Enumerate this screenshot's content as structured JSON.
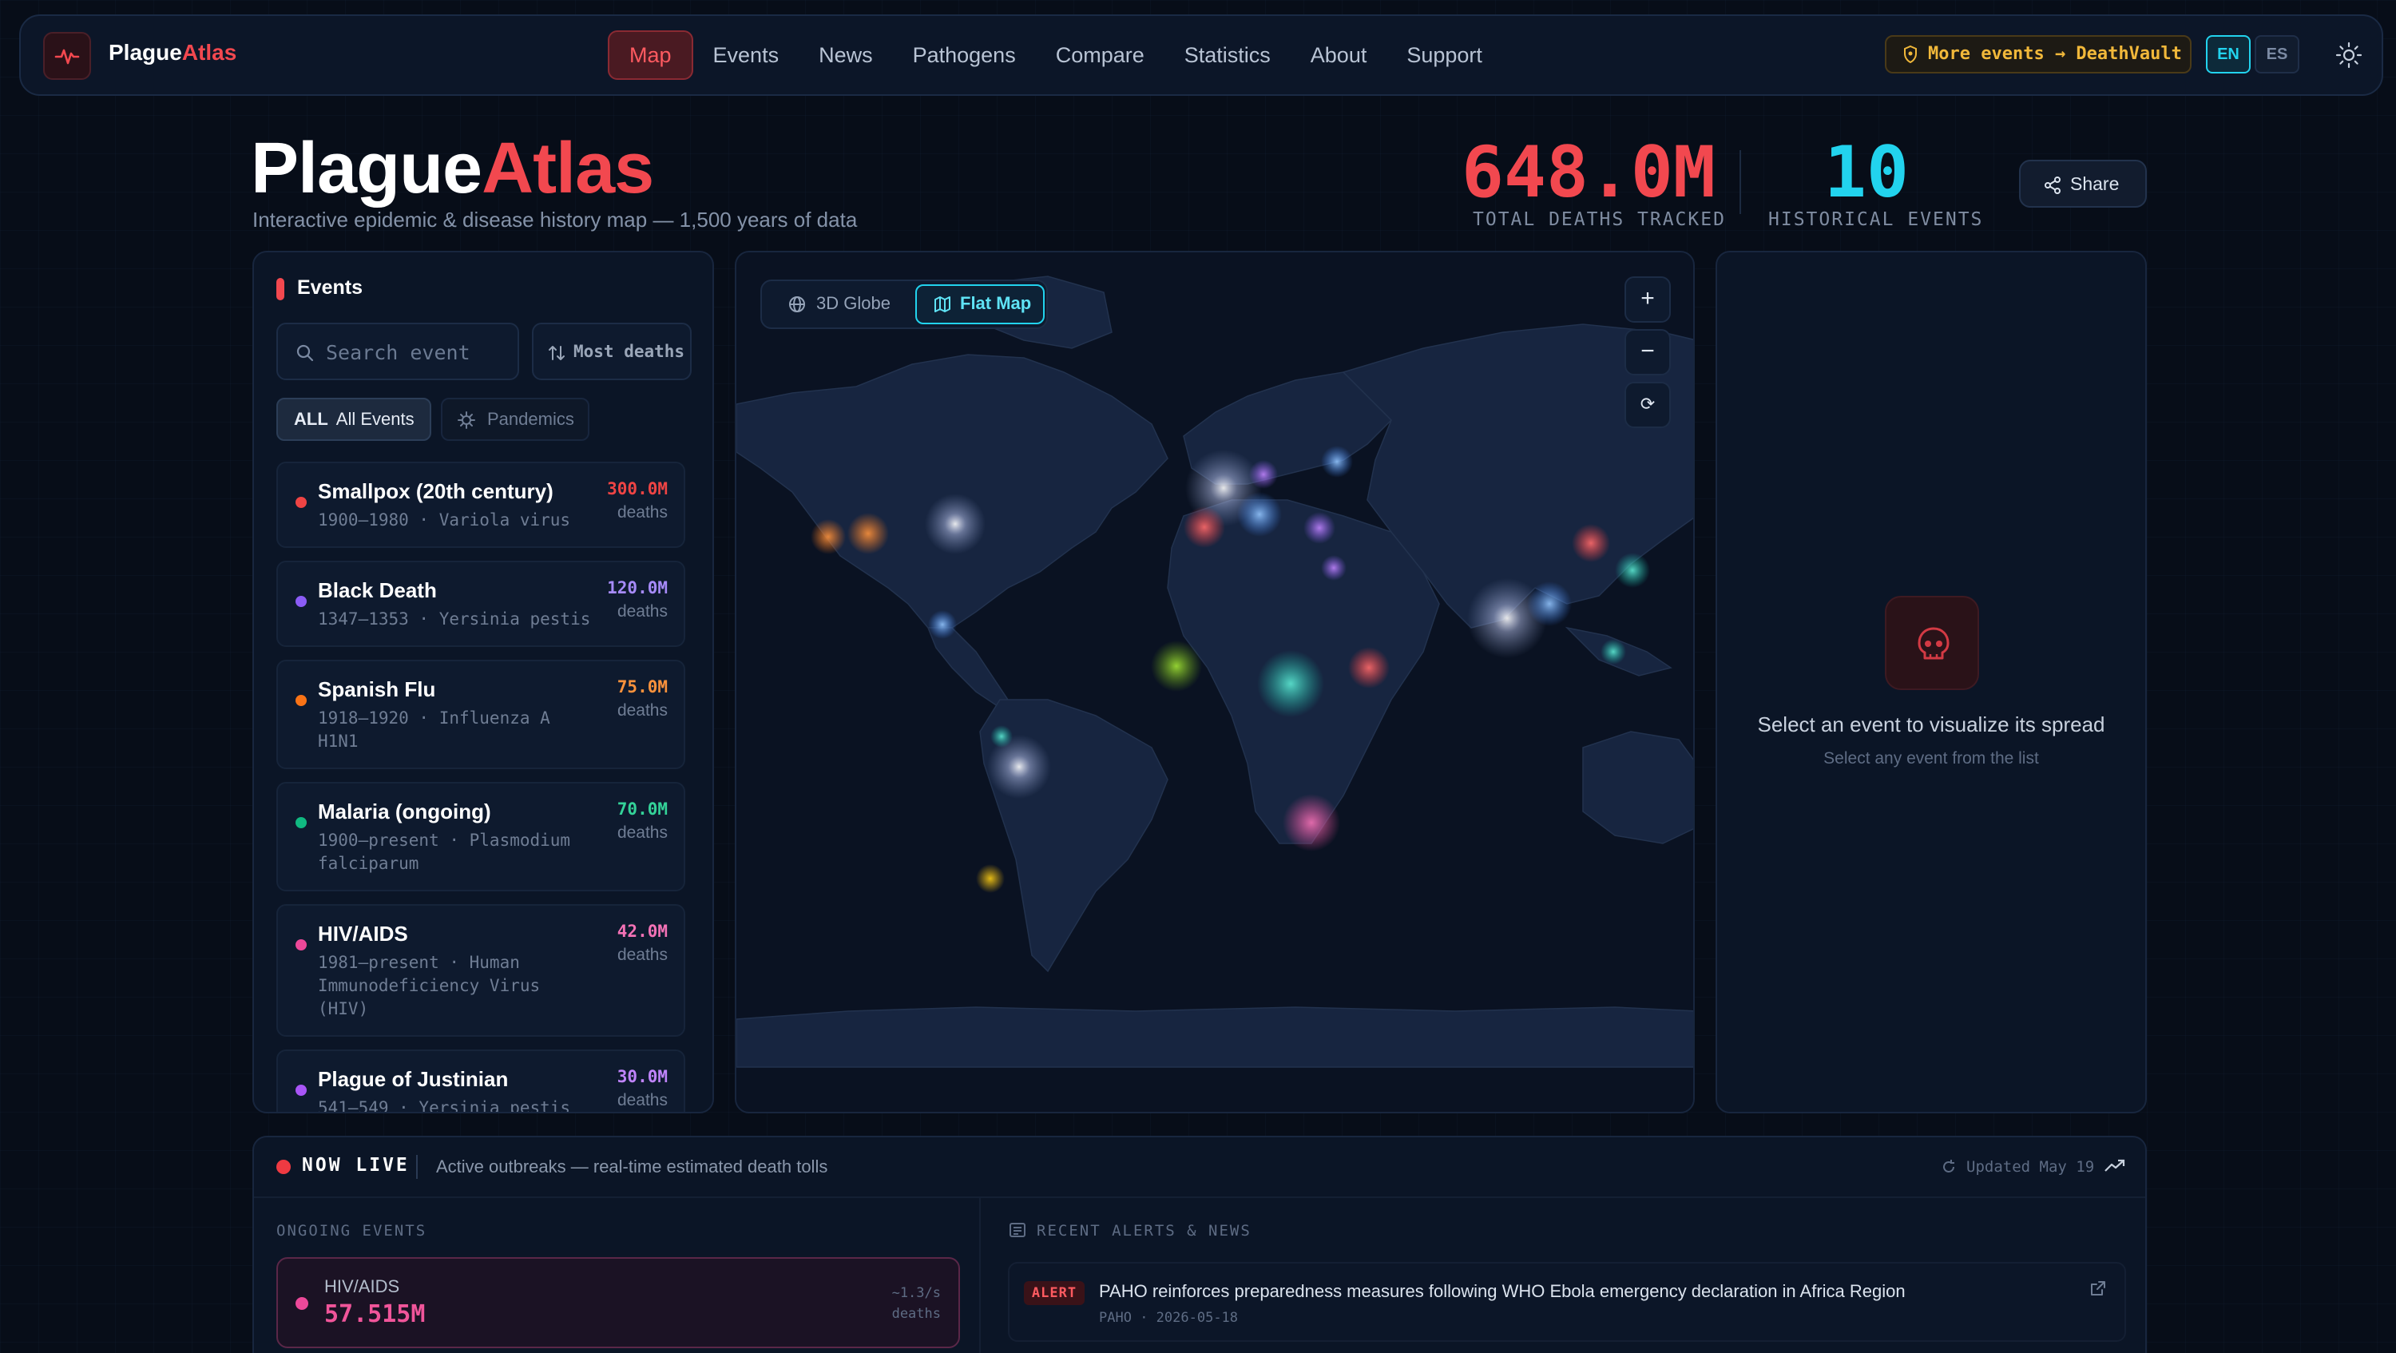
{
  "nav": {
    "logo_main": "Plague",
    "logo_accent": "Atlas",
    "links": [
      "Map",
      "Events",
      "News",
      "Pathogens",
      "Compare",
      "Statistics",
      "About",
      "Support"
    ],
    "active": "Map",
    "more_events": "More events → DeathVault",
    "lang_en": "EN",
    "lang_es": "ES"
  },
  "hero": {
    "title_main": "Plague",
    "title_accent": "Atlas",
    "subtitle": "Interactive epidemic & disease history map — 1,500 years of data",
    "total_deaths": "648.0M",
    "total_deaths_label": "TOTAL DEATHS TRACKED",
    "historical_events": "10",
    "historical_events_label": "HISTORICAL EVENTS",
    "share": "Share"
  },
  "events_panel": {
    "heading": "Events",
    "search_placeholder": "Search event",
    "sort_label": "Most deaths",
    "chip_all_tag": "ALL",
    "chip_all_label": "All Events",
    "chip_pandemics": "Pandemics",
    "items": [
      {
        "name": "Smallpox (20th century)",
        "meta": "1900–1980 · Variola virus",
        "deaths": "300.0M",
        "unit": "deaths",
        "color": "#ef4444"
      },
      {
        "name": "Black Death",
        "meta": "1347–1353 · Yersinia pestis",
        "deaths": "120.0M",
        "unit": "deaths",
        "color": "#8b5cf6"
      },
      {
        "name": "Spanish Flu",
        "meta": "1918–1920 · Influenza A H1N1",
        "deaths": "75.0M",
        "unit": "deaths",
        "color": "#f97316"
      },
      {
        "name": "Malaria (ongoing)",
        "meta": "1900–present · Plasmodium falciparum",
        "deaths": "70.0M",
        "unit": "deaths",
        "color": "#10b981"
      },
      {
        "name": "HIV/AIDS",
        "meta": "1981–present · Human Immunodeficiency Virus (HIV)",
        "deaths": "42.0M",
        "unit": "deaths",
        "color": "#ec4899"
      },
      {
        "name": "Plague of Justinian",
        "meta": "541–549 · Yersinia pestis",
        "deaths": "30.0M",
        "unit": "deaths",
        "color": "#a855f7"
      }
    ]
  },
  "map": {
    "globe_label": "3D Globe",
    "flat_label": "Flat Map",
    "zoom_in": "+",
    "zoom_out": "−",
    "reset": "⟳"
  },
  "detail": {
    "title": "Select an event to visualize its spread",
    "subtitle": "Select any event from the list"
  },
  "live": {
    "title": "NOW LIVE",
    "description": "Active outbreaks — real-time estimated death tolls",
    "updated": "Updated May 19",
    "ongoing_label": "ONGOING EVENTS",
    "ongoing": {
      "name": "HIV/AIDS",
      "value": "57.515M",
      "rate": "~1.3/s",
      "rate_unit": "deaths"
    },
    "alerts_label": "RECENT ALERTS & NEWS",
    "alert": {
      "badge": "ALERT",
      "text": "PAHO reinforces preparedness measures following WHO Ebola emergency declaration in Africa Region",
      "source": "PAHO",
      "date": "2026-05-18"
    }
  },
  "colors": {
    "accent_red": "#f2484f",
    "accent_cyan": "#22d3ee",
    "accent_amber": "#f1b83a"
  }
}
